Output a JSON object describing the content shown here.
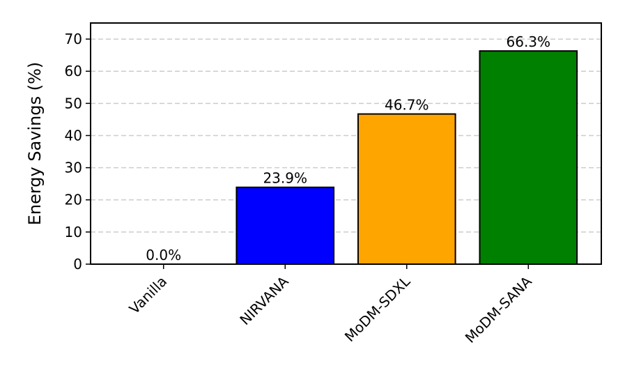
{
  "chart_data": {
    "type": "bar",
    "y_label": "Energy Savings (%)",
    "categories": [
      "Vanilla",
      "NIRVANA",
      "MoDM-SDXL",
      "MoDM-SANA"
    ],
    "values": [
      0.0,
      23.9,
      46.7,
      66.3
    ],
    "value_labels": [
      "0.0%",
      "23.9%",
      "46.7%",
      "66.3%"
    ],
    "colors": [
      "gray",
      "blue",
      "orange",
      "green"
    ],
    "ylim": [
      0,
      75
    ],
    "yticks": [
      0,
      10,
      20,
      30,
      40,
      50,
      60,
      70
    ],
    "grid": true
  }
}
